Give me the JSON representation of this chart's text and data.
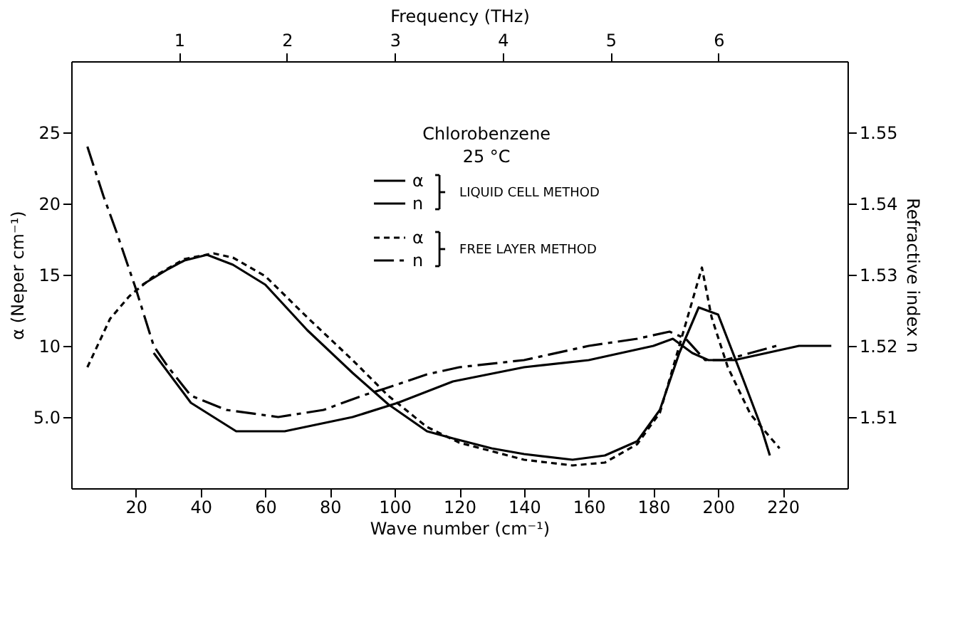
{
  "chart_data": {
    "type": "line",
    "title": "Chlorobenzene",
    "subtitle": "25 °C",
    "xlabel": "Wave number (cm⁻¹)",
    "ylabel": "α (Neper cm⁻¹)",
    "y2label": "Refractive index  n",
    "x2label": "Frequency (THz)",
    "xlim": [
      0,
      240
    ],
    "xticks": [
      20,
      40,
      60,
      80,
      100,
      120,
      140,
      160,
      180,
      200,
      220
    ],
    "ylim": [
      0,
      30
    ],
    "yticks": [
      {
        "value": 5,
        "label": "5.0"
      },
      10,
      15,
      20,
      25
    ],
    "y2lim": [
      1.5,
      1.56
    ],
    "y2ticks": [
      1.51,
      1.52,
      1.53,
      1.54,
      1.55
    ],
    "x2lim": [
      0,
      7.195
    ],
    "x2ticks": [
      1,
      2,
      3,
      4,
      5,
      6
    ],
    "grid": false,
    "legend": "top",
    "marker": "none",
    "annotations": [
      "LIQUID CELL METHOD",
      "FREE LAYER METHOD"
    ],
    "series": [
      {
        "name": "α",
        "color": "#000000",
        "line_style": "solid",
        "x": [
          22,
          30,
          35,
          42,
          50,
          60,
          73,
          87,
          98,
          110,
          118,
          130,
          140,
          155,
          165,
          175,
          182,
          188,
          194,
          200,
          208,
          213,
          216
        ],
        "values": [
          14.3,
          15.4,
          16.0,
          16.4,
          15.7,
          14.3,
          11.1,
          8.1,
          5.9,
          4.0,
          3.5,
          2.8,
          2.4,
          2.0,
          2.3,
          3.3,
          5.5,
          9.5,
          12.7,
          12.2,
          7.5,
          4.5,
          2.3
        ]
      },
      {
        "name": "n",
        "color": "#000000",
        "line_style": "solid",
        "axis": "y2",
        "x": [
          25.5,
          37,
          51,
          66,
          87,
          101,
          118,
          140,
          160,
          180,
          186,
          192,
          197,
          205,
          215,
          225,
          235
        ],
        "values": [
          1.519,
          1.512,
          1.508,
          1.508,
          1.51,
          1.512,
          1.515,
          1.517,
          1.518,
          1.52,
          1.521,
          1.519,
          1.518,
          1.518,
          1.519,
          1.52,
          1.52
        ]
      },
      {
        "name": "α",
        "color": "#000000",
        "line_style": "dotted",
        "x": [
          5,
          12,
          18,
          25,
          35,
          44,
          50,
          60,
          73,
          87,
          98,
          110,
          120,
          140,
          155,
          165,
          175,
          182,
          188,
          195,
          198,
          203,
          210,
          219
        ],
        "values": [
          8.5,
          11.9,
          13.5,
          14.8,
          16.1,
          16.5,
          16.2,
          14.9,
          12.0,
          9.0,
          6.5,
          4.3,
          3.2,
          2.0,
          1.6,
          1.8,
          3.1,
          5.3,
          10.0,
          15.5,
          12.0,
          8.5,
          5.2,
          2.8
        ]
      },
      {
        "name": "n",
        "color": "#000000",
        "line_style": "dashed",
        "axis": "y2",
        "x": [
          5,
          10,
          14,
          20,
          25.5,
          30,
          37,
          48,
          64,
          78,
          90,
          97,
          110,
          120,
          140,
          160,
          175,
          185,
          190,
          196,
          202,
          210,
          218
        ],
        "values": [
          1.548,
          1.541,
          1.536,
          1.528,
          1.52,
          1.517,
          1.513,
          1.511,
          1.51,
          1.511,
          1.513,
          1.514,
          1.516,
          1.517,
          1.518,
          1.52,
          1.521,
          1.522,
          1.521,
          1.518,
          1.518,
          1.519,
          1.52
        ]
      }
    ]
  }
}
